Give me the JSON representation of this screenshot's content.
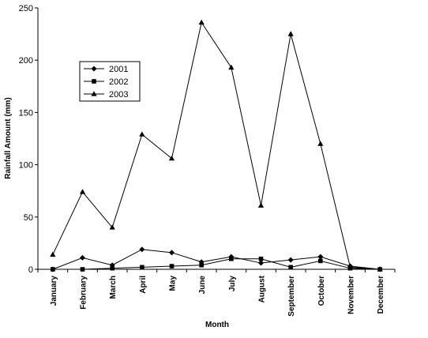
{
  "chart_data": {
    "type": "line",
    "title": "",
    "xlabel": "Month",
    "ylabel": "Rainfall Amount (mm)",
    "ylim": [
      0,
      250
    ],
    "yticks": [
      0,
      50,
      100,
      150,
      200,
      250
    ],
    "grid": false,
    "legend_position": "left",
    "categories": [
      "January",
      "February",
      "March",
      "April",
      "May",
      "June",
      "July",
      "August",
      "September",
      "October",
      "November",
      "December"
    ],
    "series": [
      {
        "name": "2001",
        "marker": "diamond",
        "values": [
          0,
          11,
          4,
          19,
          16,
          7,
          12,
          6,
          9,
          12,
          3,
          0
        ]
      },
      {
        "name": "2002",
        "marker": "square",
        "values": [
          0,
          0,
          1,
          2,
          3,
          4,
          10,
          10,
          2,
          8,
          1,
          0
        ]
      },
      {
        "name": "2003",
        "marker": "triangle",
        "values": [
          14,
          74,
          40,
          129,
          106,
          236,
          193,
          61,
          225,
          120,
          2,
          0
        ]
      }
    ]
  }
}
